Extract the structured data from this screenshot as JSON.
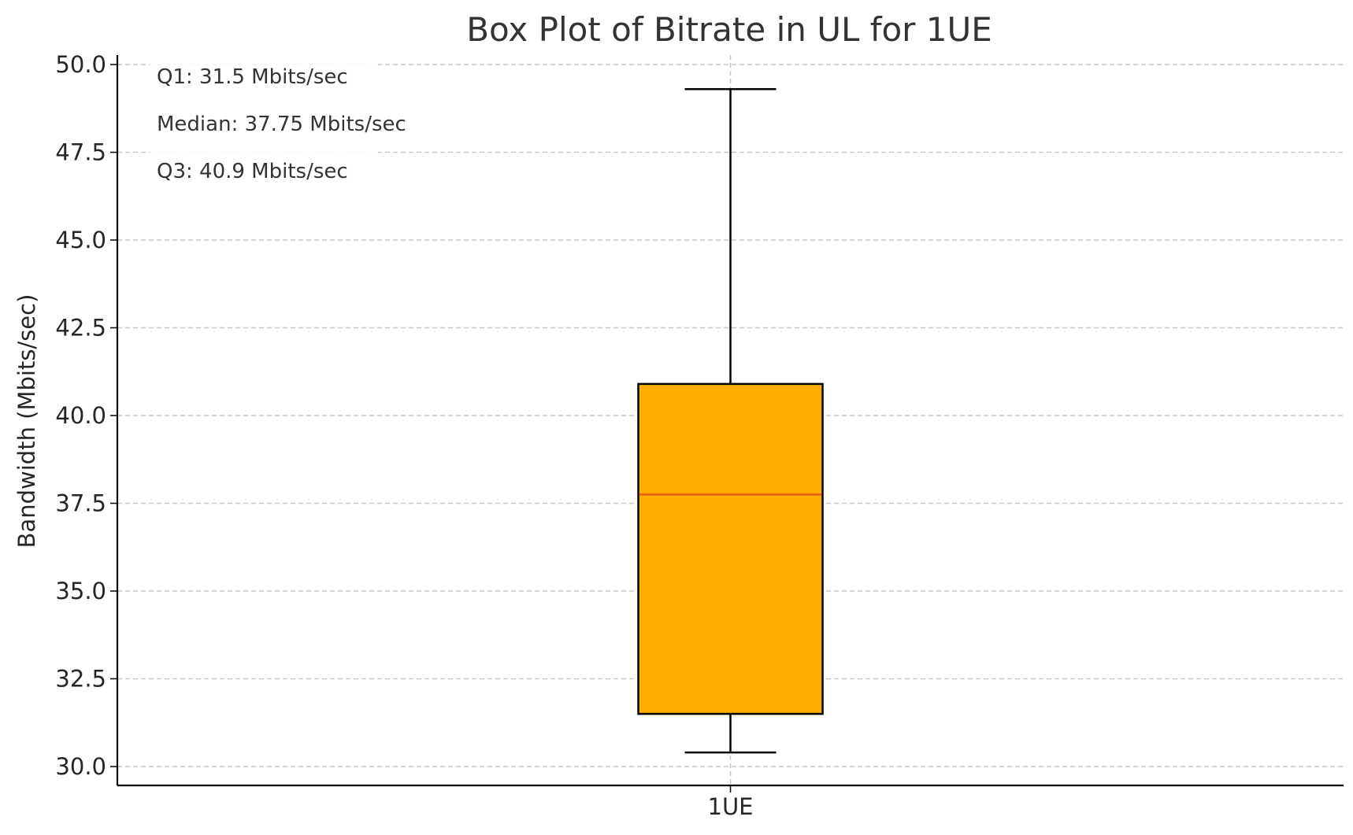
{
  "chart_data": {
    "type": "box",
    "title": "Box Plot of Bitrate in UL for 1UE",
    "xlabel": "",
    "ylabel": "Bandwidth (Mbits/sec)",
    "categories": [
      "1UE"
    ],
    "ylim": [
      29.5,
      50.2
    ],
    "yticks": [
      30.0,
      32.5,
      35.0,
      37.5,
      40.0,
      42.5,
      45.0,
      47.5,
      50.0
    ],
    "ytick_labels": [
      "30.0",
      "32.5",
      "35.0",
      "37.5",
      "40.0",
      "42.5",
      "45.0",
      "47.5",
      "50.0"
    ],
    "grid": true,
    "boxes": [
      {
        "category": "1UE",
        "whisker_low": 30.4,
        "q1": 31.5,
        "median": 37.75,
        "q3": 40.9,
        "whisker_high": 49.3
      }
    ],
    "annotations": [
      "Q1: 31.5 Mbits/sec",
      "Median: 37.75 Mbits/sec",
      "Q3: 40.9 Mbits/sec"
    ],
    "colors": {
      "box_fill": "#FFAE00",
      "median_line": "#E8601C",
      "box_edge": "#000000",
      "grid": "#C8C8C8"
    }
  }
}
